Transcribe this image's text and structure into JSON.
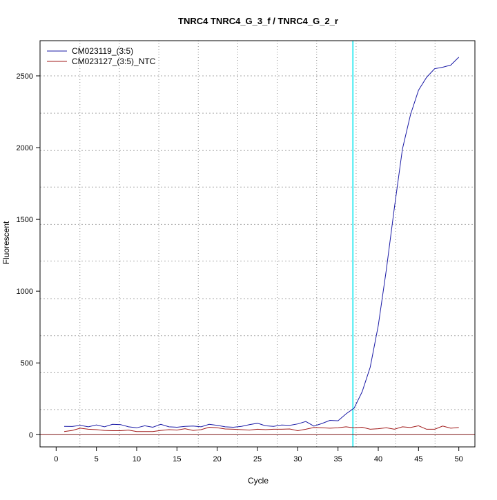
{
  "chart_data": {
    "type": "line",
    "title": "TNRC4  TNRC4_G_3_f / TNRC4_G_2_r",
    "xlabel": "Cycle",
    "ylabel": "Fluorescent",
    "xlim": [
      -2,
      52
    ],
    "ylim": [
      -85,
      2745
    ],
    "xticks": [
      0,
      5,
      10,
      15,
      20,
      25,
      30,
      35,
      40,
      45,
      50
    ],
    "yticks": [
      0,
      500,
      1000,
      1500,
      2000,
      2500
    ],
    "grid": true,
    "grid_x": [
      2.95,
      7.85,
      12.75,
      17.65,
      22.55,
      27.45,
      32.35,
      37.25,
      42.15,
      47.05
    ],
    "grid_y": [
      175,
      432,
      690,
      948,
      1210,
      1465,
      1725,
      1980,
      2240,
      2500
    ],
    "threshold_cycle": 36.85,
    "threshold_color": "#00e5ee",
    "legend_position": "top-left",
    "x": [
      1,
      2,
      3,
      4,
      5,
      6,
      7,
      8,
      9,
      10,
      11,
      12,
      13,
      14,
      15,
      16,
      17,
      18,
      19,
      20,
      21,
      22,
      23,
      24,
      25,
      26,
      27,
      28,
      29,
      30,
      31,
      32,
      33,
      34,
      35,
      36,
      37,
      38,
      39,
      40,
      41,
      42,
      43,
      44,
      45,
      46,
      47,
      48,
      49,
      50
    ],
    "series": [
      {
        "name": "CM023119_(3:5)",
        "color": "#1a1aa6",
        "values": [
          58,
          57,
          65,
          55,
          68,
          55,
          72,
          70,
          55,
          48,
          62,
          52,
          72,
          55,
          52,
          58,
          60,
          55,
          72,
          65,
          55,
          52,
          58,
          70,
          80,
          62,
          58,
          68,
          65,
          75,
          92,
          60,
          78,
          100,
          97,
          145,
          185,
          300,
          470,
          760,
          1150,
          1580,
          1990,
          2230,
          2400,
          2490,
          2550,
          2560,
          2575,
          2630
        ]
      },
      {
        "name": "CM023127_(3:5)_NTC",
        "color": "#a01818",
        "values": [
          22,
          30,
          45,
          38,
          35,
          30,
          28,
          28,
          32,
          22,
          22,
          22,
          30,
          35,
          32,
          42,
          30,
          35,
          52,
          48,
          40,
          38,
          35,
          32,
          38,
          35,
          38,
          38,
          40,
          28,
          38,
          50,
          48,
          45,
          48,
          55,
          48,
          52,
          38,
          42,
          48,
          38,
          55,
          50,
          62,
          38,
          38,
          60,
          45,
          50
        ]
      }
    ]
  }
}
